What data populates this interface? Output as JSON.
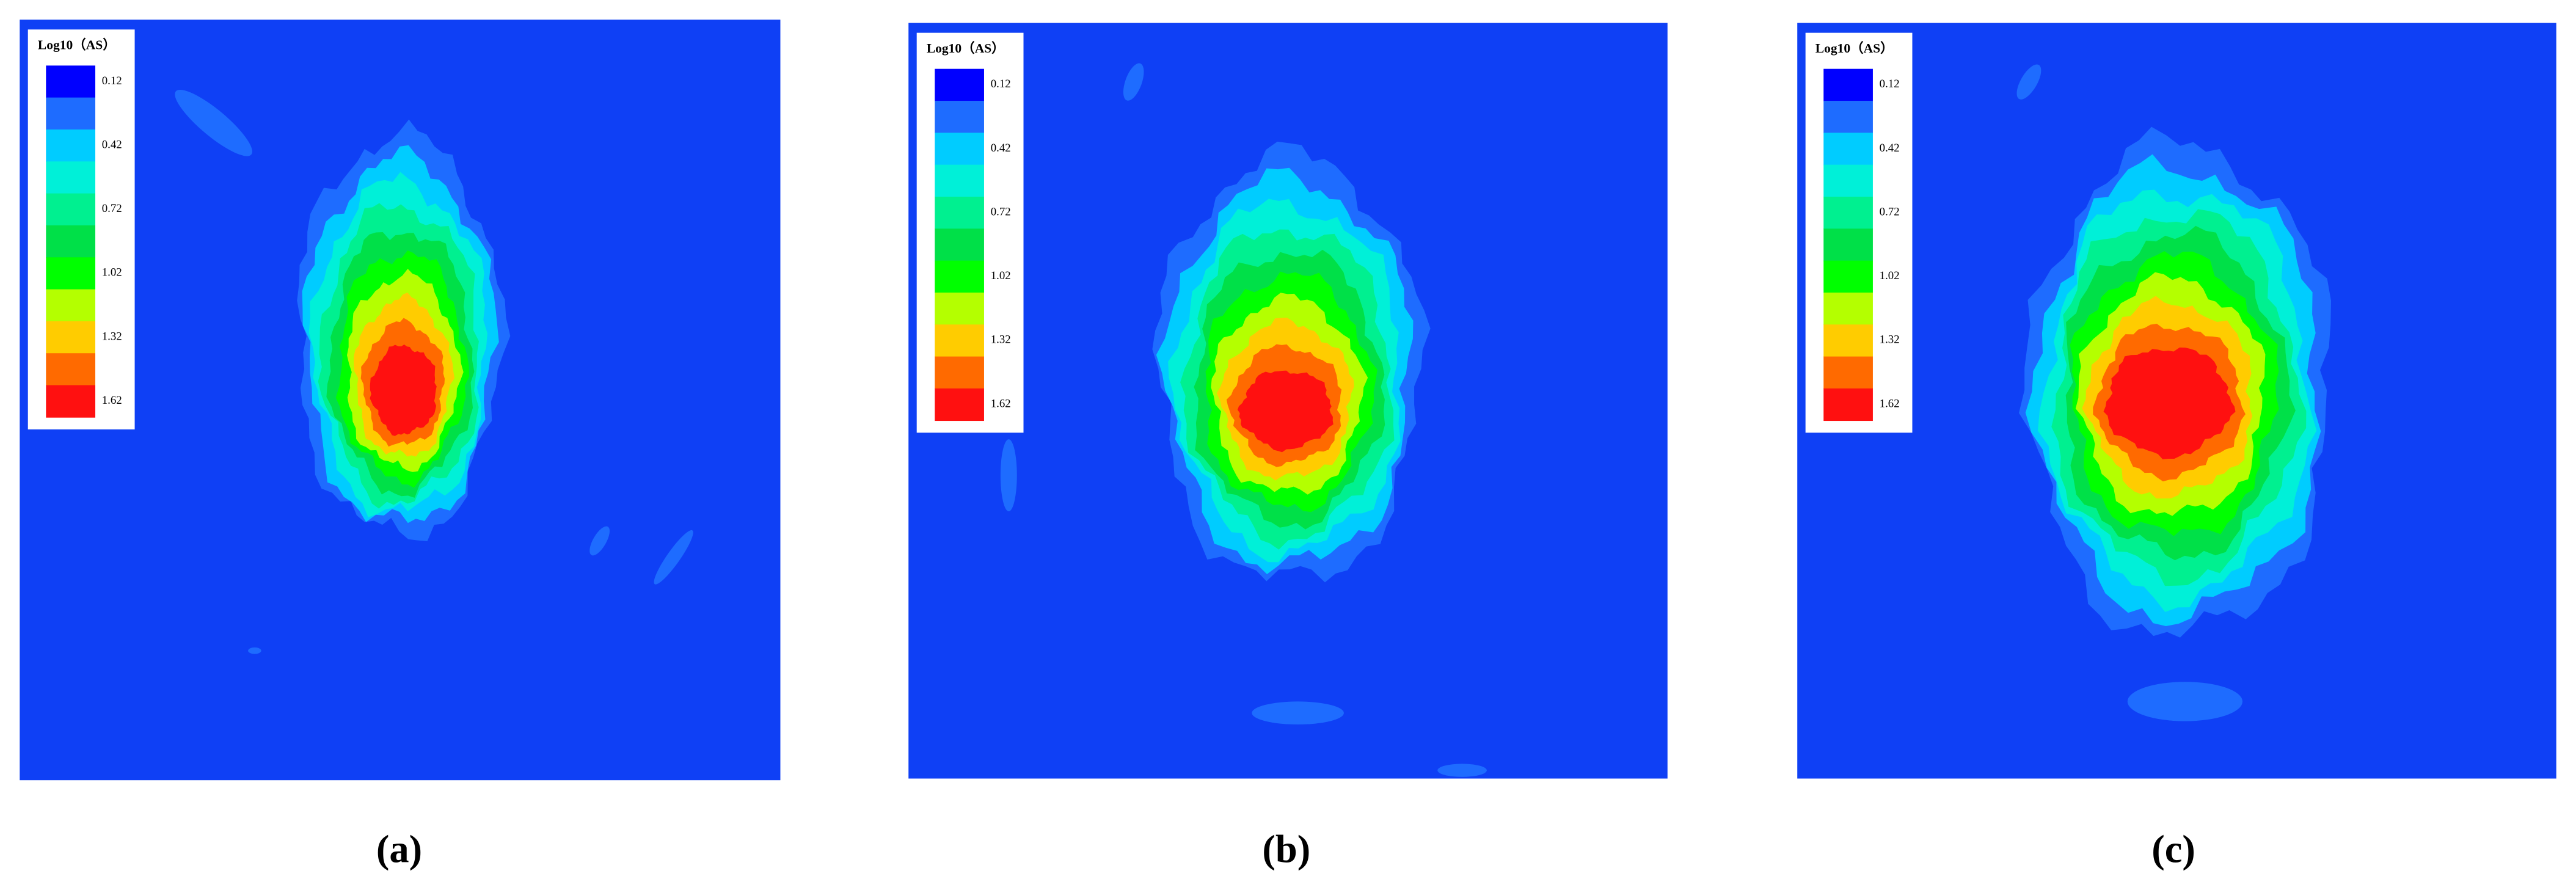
{
  "legend_colors": [
    "#0000ff",
    "#1e6cff",
    "#00ccff",
    "#00f0d8",
    "#00f090",
    "#00e048",
    "#00ff00",
    "#b4ff00",
    "#ffcc00",
    "#ff6a00",
    "#ff1010"
  ],
  "background": "#0f40f5",
  "panels": [
    {
      "label": "(a)",
      "legend": {
        "title": "Log10（AS）",
        "ticks": [
          0.12,
          0.42,
          0.72,
          1.02,
          1.32,
          1.62
        ]
      }
    },
    {
      "label": "(b)",
      "legend": {
        "title": "Log10（AS）",
        "ticks": [
          0.12,
          0.42,
          0.72,
          1.02,
          1.32,
          1.62
        ]
      }
    },
    {
      "label": "(c)",
      "legend": {
        "title": "Log10（AS）",
        "ticks": [
          0.12,
          0.42,
          0.72,
          1.02,
          1.32,
          1.62
        ]
      }
    }
  ]
}
